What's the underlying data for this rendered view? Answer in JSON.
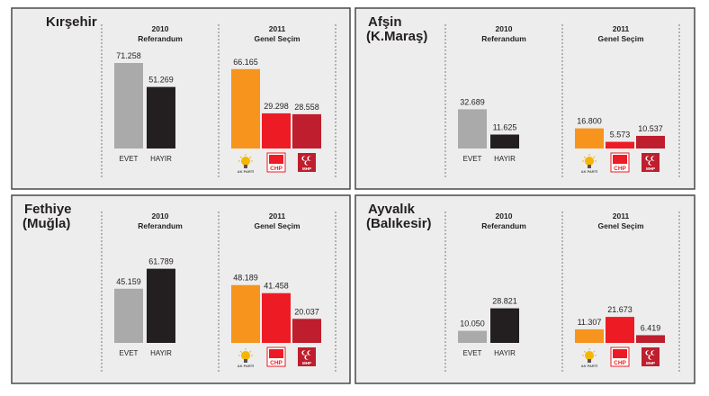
{
  "colors": {
    "panel_bg": "#ededed",
    "panel_border": "#4a4a4a",
    "evet": "#aaaaaa",
    "hayir": "#231f20",
    "akp": "#f7941d",
    "chp": "#ed1c24",
    "mhp": "#be1e2d"
  },
  "labels": {
    "ref_year": "2010",
    "ref_name": "Referandum",
    "elec_year": "2011",
    "elec_name": "Genel Seçim",
    "evet": "EVET",
    "hayir": "HAYIR",
    "akp_logo": "AK PARTİ",
    "chp_logo": "CHP",
    "mhp_logo": "MHP"
  },
  "icons": {
    "akp": "light-bulb-logo-icon",
    "chp": "six-arrows-logo-icon",
    "mhp": "three-crescents-logo-icon"
  },
  "chart_data": [
    {
      "type": "bar",
      "title": "Kırşehir",
      "subtitle": "",
      "referendum": {
        "categories": [
          "EVET",
          "HAYIR"
        ],
        "values": [
          71258,
          51269
        ],
        "display": [
          "71.258",
          "51.269"
        ]
      },
      "election": {
        "categories": [
          "AK PARTİ",
          "CHP",
          "MHP"
        ],
        "values": [
          66165,
          29298,
          28558
        ],
        "display": [
          "66.165",
          "29.298",
          "28.558"
        ]
      }
    },
    {
      "type": "bar",
      "title": "Afşin",
      "subtitle": "(K.Maraş)",
      "referendum": {
        "categories": [
          "EVET",
          "HAYIR"
        ],
        "values": [
          32689,
          11625
        ],
        "display": [
          "32.689",
          "11.625"
        ]
      },
      "election": {
        "categories": [
          "AK PARTİ",
          "CHP",
          "MHP"
        ],
        "values": [
          16800,
          5573,
          10537
        ],
        "display": [
          "16.800",
          "5.573",
          "10.537"
        ]
      }
    },
    {
      "type": "bar",
      "title": "Fethiye",
      "subtitle": "(Muğla)",
      "referendum": {
        "categories": [
          "EVET",
          "HAYIR"
        ],
        "values": [
          45159,
          61789
        ],
        "display": [
          "45.159",
          "61.789"
        ]
      },
      "election": {
        "categories": [
          "AK PARTİ",
          "CHP",
          "MHP"
        ],
        "values": [
          48189,
          41458,
          20037
        ],
        "display": [
          "48.189",
          "41.458",
          "20.037"
        ]
      }
    },
    {
      "type": "bar",
      "title": "Ayvalık",
      "subtitle": "(Balıkesir)",
      "referendum": {
        "categories": [
          "EVET",
          "HAYIR"
        ],
        "values": [
          10050,
          28821
        ],
        "display": [
          "10.050",
          "28.821"
        ]
      },
      "election": {
        "categories": [
          "AK PARTİ",
          "CHP",
          "MHP"
        ],
        "values": [
          11307,
          21673,
          6419
        ],
        "display": [
          "11.307",
          "21.673",
          "6.419"
        ]
      }
    }
  ]
}
